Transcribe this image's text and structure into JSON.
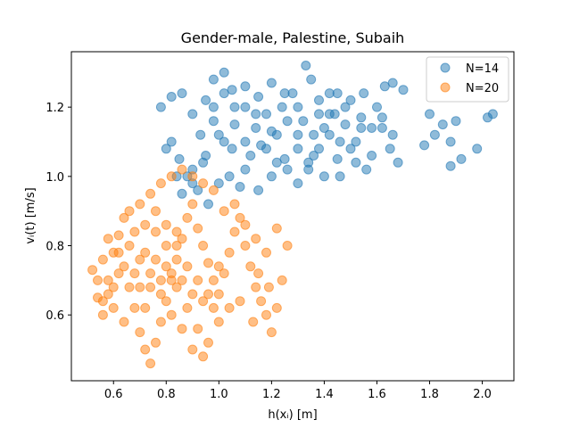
{
  "chart_data": {
    "type": "scatter",
    "title": "Gender-male, Palestine, Subaih",
    "xlabel": "h(xᵢ) [m]",
    "ylabel": "vᵢ(t) [m/s]",
    "xlim": [
      0.44,
      2.12
    ],
    "ylim": [
      0.41,
      1.36
    ],
    "xticks": [
      "0.6",
      "0.8",
      "1.0",
      "1.2",
      "1.4",
      "1.6",
      "1.8",
      "2.0"
    ],
    "yticks": [
      "0.6",
      "0.8",
      "1.0",
      "1.2"
    ],
    "grid": false,
    "legend_position": "top-right",
    "series": [
      {
        "name": "N=14",
        "color": "#1f77b4",
        "points": [
          [
            0.95,
            1.22
          ],
          [
            0.98,
            1.28
          ],
          [
            1.02,
            1.3
          ],
          [
            1.05,
            1.25
          ],
          [
            1.1,
            1.2
          ],
          [
            1.15,
            1.23
          ],
          [
            1.2,
            1.27
          ],
          [
            1.25,
            1.24
          ],
          [
            1.3,
            1.2
          ],
          [
            1.33,
            1.32
          ],
          [
            1.35,
            1.28
          ],
          [
            1.38,
            1.22
          ],
          [
            1.42,
            1.18
          ],
          [
            1.45,
            1.24
          ],
          [
            1.5,
            1.22
          ],
          [
            1.55,
            1.24
          ],
          [
            1.6,
            1.2
          ],
          [
            1.63,
            1.26
          ],
          [
            1.66,
            1.27
          ],
          [
            1.7,
            1.25
          ],
          [
            1.62,
            1.14
          ],
          [
            1.65,
            1.08
          ],
          [
            1.68,
            1.04
          ],
          [
            1.58,
            1.06
          ],
          [
            1.52,
            1.1
          ],
          [
            1.48,
            1.15
          ],
          [
            1.45,
            1.05
          ],
          [
            1.4,
            1.0
          ],
          [
            1.36,
            1.06
          ],
          [
            1.3,
            1.12
          ],
          [
            1.25,
            1.05
          ],
          [
            1.2,
            1.0
          ],
          [
            1.15,
            0.96
          ],
          [
            1.1,
            1.02
          ],
          [
            1.05,
            1.08
          ],
          [
            1.0,
            1.12
          ],
          [
            0.95,
            1.06
          ],
          [
            0.9,
            1.02
          ],
          [
            0.85,
            1.05
          ],
          [
            0.8,
            1.08
          ],
          [
            0.78,
            1.2
          ],
          [
            0.82,
            1.23
          ],
          [
            0.86,
            1.24
          ],
          [
            0.9,
            1.18
          ],
          [
            0.93,
            1.12
          ],
          [
            0.98,
            1.16
          ],
          [
            1.02,
            1.1
          ],
          [
            1.06,
            1.15
          ],
          [
            1.1,
            1.1
          ],
          [
            1.14,
            1.14
          ],
          [
            1.18,
            1.18
          ],
          [
            1.22,
            1.12
          ],
          [
            1.26,
            1.16
          ],
          [
            1.3,
            1.08
          ],
          [
            1.34,
            1.02
          ],
          [
            1.38,
            1.08
          ],
          [
            1.42,
            1.12
          ],
          [
            1.46,
            1.0
          ],
          [
            1.52,
            1.04
          ],
          [
            1.56,
            1.02
          ],
          [
            1.8,
            1.18
          ],
          [
            1.82,
            1.12
          ],
          [
            1.85,
            1.15
          ],
          [
            1.88,
            1.1
          ],
          [
            1.9,
            1.16
          ],
          [
            1.92,
            1.05
          ],
          [
            1.88,
            1.03
          ],
          [
            1.98,
            1.08
          ],
          [
            2.02,
            1.17
          ],
          [
            2.04,
            1.18
          ],
          [
            1.78,
            1.09
          ],
          [
            0.88,
            1.0
          ],
          [
            0.92,
            0.96
          ],
          [
            0.96,
            0.92
          ],
          [
            1.0,
            0.98
          ],
          [
            1.04,
            1.0
          ],
          [
            1.08,
            0.97
          ],
          [
            1.12,
            1.06
          ],
          [
            1.16,
            1.09
          ],
          [
            1.2,
            1.13
          ],
          [
            1.24,
            1.2
          ],
          [
            1.28,
            1.24
          ],
          [
            1.32,
            1.16
          ],
          [
            1.36,
            1.12
          ],
          [
            1.4,
            1.14
          ],
          [
            1.44,
            1.18
          ],
          [
            1.48,
            1.2
          ],
          [
            1.54,
            1.17
          ],
          [
            1.58,
            1.14
          ],
          [
            1.62,
            1.17
          ],
          [
            1.66,
            1.12
          ],
          [
            0.82,
            1.1
          ],
          [
            0.84,
            1.0
          ],
          [
            0.86,
            0.95
          ],
          [
            0.9,
            0.98
          ],
          [
            0.94,
            1.04
          ],
          [
            0.98,
            1.2
          ],
          [
            1.02,
            1.24
          ],
          [
            1.06,
            1.2
          ],
          [
            1.1,
            1.26
          ],
          [
            1.14,
            1.18
          ],
          [
            1.18,
            1.08
          ],
          [
            1.22,
            1.04
          ],
          [
            1.26,
            1.02
          ],
          [
            1.3,
            0.98
          ],
          [
            1.34,
            1.04
          ],
          [
            1.38,
            1.18
          ],
          [
            1.42,
            1.24
          ],
          [
            1.46,
            1.1
          ],
          [
            1.5,
            1.08
          ],
          [
            1.54,
            1.14
          ]
        ]
      },
      {
        "name": "N=20",
        "color": "#ff7f0e",
        "points": [
          [
            0.52,
            0.73
          ],
          [
            0.54,
            0.65
          ],
          [
            0.56,
            0.6
          ],
          [
            0.58,
            0.7
          ],
          [
            0.6,
            0.78
          ],
          [
            0.62,
            0.83
          ],
          [
            0.64,
            0.88
          ],
          [
            0.66,
            0.9
          ],
          [
            0.68,
            0.62
          ],
          [
            0.7,
            0.55
          ],
          [
            0.72,
            0.5
          ],
          [
            0.74,
            0.46
          ],
          [
            0.76,
            0.52
          ],
          [
            0.78,
            0.58
          ],
          [
            0.8,
            0.64
          ],
          [
            0.82,
            0.7
          ],
          [
            0.84,
            0.76
          ],
          [
            0.86,
            0.82
          ],
          [
            0.88,
            0.88
          ],
          [
            0.9,
            0.92
          ],
          [
            0.92,
            0.85
          ],
          [
            0.94,
            0.8
          ],
          [
            0.96,
            0.75
          ],
          [
            0.98,
            0.7
          ],
          [
            1.0,
            0.66
          ],
          [
            1.02,
            0.72
          ],
          [
            1.04,
            0.78
          ],
          [
            1.06,
            0.84
          ],
          [
            1.08,
            0.88
          ],
          [
            1.1,
            0.8
          ],
          [
            1.12,
            0.74
          ],
          [
            1.14,
            0.68
          ],
          [
            1.16,
            0.64
          ],
          [
            1.18,
            0.6
          ],
          [
            1.2,
            0.55
          ],
          [
            1.22,
            0.62
          ],
          [
            1.24,
            0.7
          ],
          [
            1.26,
            0.8
          ],
          [
            1.22,
            0.85
          ],
          [
            1.18,
            0.78
          ],
          [
            1.14,
            0.82
          ],
          [
            1.1,
            0.86
          ],
          [
            1.06,
            0.92
          ],
          [
            1.02,
            0.9
          ],
          [
            0.98,
            0.96
          ],
          [
            0.94,
            0.98
          ],
          [
            0.9,
            1.0
          ],
          [
            0.86,
            1.02
          ],
          [
            0.82,
            1.0
          ],
          [
            0.78,
            0.98
          ],
          [
            0.74,
            0.95
          ],
          [
            0.7,
            0.92
          ],
          [
            0.66,
            0.8
          ],
          [
            0.62,
            0.72
          ],
          [
            0.58,
            0.66
          ],
          [
            0.56,
            0.76
          ],
          [
            0.6,
            0.62
          ],
          [
            0.64,
            0.58
          ],
          [
            0.68,
            0.72
          ],
          [
            0.72,
            0.78
          ],
          [
            0.76,
            0.84
          ],
          [
            0.8,
            0.74
          ],
          [
            0.84,
            0.68
          ],
          [
            0.88,
            0.62
          ],
          [
            0.92,
            0.56
          ],
          [
            0.96,
            0.52
          ],
          [
            1.0,
            0.58
          ],
          [
            0.7,
            0.68
          ],
          [
            0.74,
            0.72
          ],
          [
            0.78,
            0.66
          ],
          [
            0.82,
            0.6
          ],
          [
            0.86,
            0.56
          ],
          [
            0.9,
            0.5
          ],
          [
            0.94,
            0.48
          ],
          [
            0.76,
            0.76
          ],
          [
            0.8,
            0.8
          ],
          [
            0.84,
            0.84
          ],
          [
            0.72,
            0.62
          ],
          [
            0.66,
            0.68
          ],
          [
            0.62,
            0.78
          ],
          [
            0.58,
            0.82
          ],
          [
            0.54,
            0.7
          ],
          [
            1.15,
            0.72
          ],
          [
            1.19,
            0.68
          ],
          [
            1.13,
            0.58
          ],
          [
            1.08,
            0.64
          ],
          [
            1.04,
            0.62
          ],
          [
            1.0,
            0.74
          ],
          [
            0.96,
            0.66
          ],
          [
            0.92,
            0.7
          ],
          [
            0.88,
            0.74
          ],
          [
            0.84,
            0.8
          ],
          [
            0.8,
            0.86
          ],
          [
            0.76,
            0.9
          ],
          [
            0.72,
            0.86
          ],
          [
            0.68,
            0.84
          ],
          [
            0.64,
            0.74
          ],
          [
            0.6,
            0.68
          ],
          [
            0.56,
            0.64
          ],
          [
            0.7,
            0.76
          ],
          [
            0.74,
            0.68
          ],
          [
            0.78,
            0.7
          ],
          [
            0.82,
            0.72
          ],
          [
            0.86,
            0.7
          ],
          [
            0.9,
            0.66
          ],
          [
            0.94,
            0.64
          ],
          [
            0.98,
            0.62
          ]
        ]
      }
    ]
  }
}
